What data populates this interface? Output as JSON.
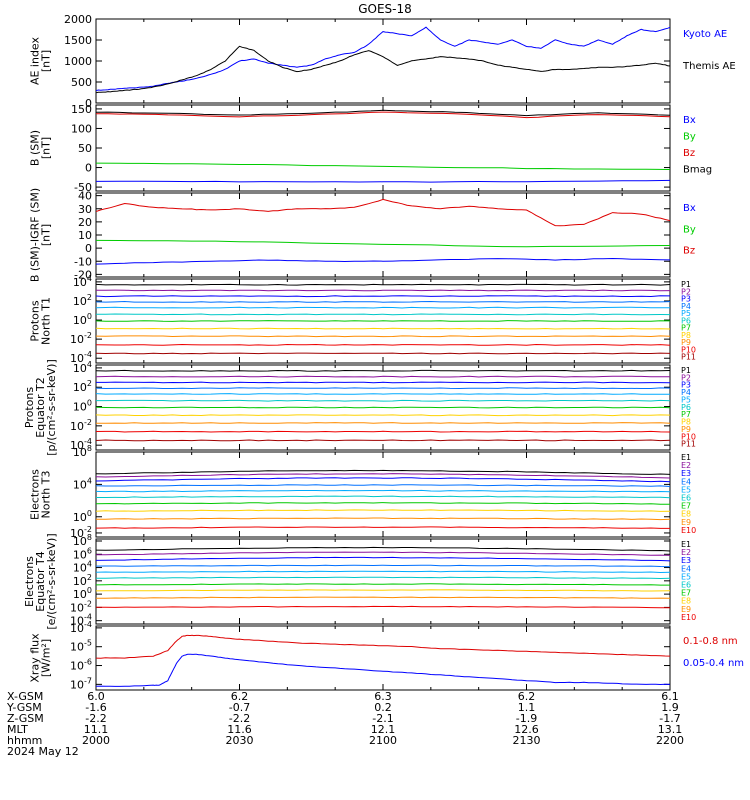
{
  "title": "GOES-18",
  "chart_data": {
    "type": "line",
    "title": "GOES-18",
    "x_range": [
      "2000",
      "2200"
    ],
    "panels": [
      {
        "id": "ae",
        "ylabel_lines": [
          "AE index",
          "[nT]"
        ],
        "ylim": [
          0,
          2000
        ],
        "scale": "linear",
        "ticks": [
          0,
          500,
          1000,
          1500,
          2000
        ],
        "tick_labels": [
          "0",
          "500",
          "1000",
          "1500",
          "2000"
        ],
        "series": [
          {
            "name": "Kyoto AE",
            "color": "#0000ff",
            "x": [
              0,
              5,
              10,
              15,
              20,
              25,
              30,
              35,
              40,
              45,
              50,
              55,
              60,
              65,
              70,
              75,
              80,
              85,
              90,
              95,
              100,
              105,
              110,
              115,
              120,
              125,
              130,
              135,
              140,
              145,
              150,
              155,
              160,
              165,
              170,
              175,
              180,
              185,
              190,
              195,
              200
            ],
            "values": [
              300,
              320,
              350,
              370,
              400,
              470,
              520,
              590,
              680,
              800,
              1000,
              1050,
              950,
              900,
              850,
              900,
              1050,
              1150,
              1200,
              1400,
              1700,
              1650,
              1600,
              1800,
              1500,
              1350,
              1500,
              1450,
              1400,
              1500,
              1350,
              1300,
              1500,
              1400,
              1350,
              1500,
              1400,
              1600,
              1750,
              1700,
              1800
            ]
          },
          {
            "name": "Themis AE",
            "color": "#000000",
            "x": [
              0,
              5,
              10,
              15,
              20,
              25,
              30,
              35,
              40,
              45,
              50,
              55,
              60,
              65,
              70,
              75,
              80,
              85,
              90,
              95,
              100,
              105,
              110,
              115,
              120,
              125,
              130,
              135,
              140,
              145,
              150,
              155,
              160,
              165,
              170,
              175,
              180,
              185,
              190,
              195,
              200
            ],
            "values": [
              250,
              270,
              300,
              330,
              380,
              450,
              550,
              650,
              800,
              1000,
              1350,
              1250,
              1000,
              850,
              750,
              800,
              900,
              1000,
              1150,
              1250,
              1100,
              900,
              1000,
              1050,
              1100,
              1080,
              1050,
              1000,
              900,
              850,
              800,
              750,
              800,
              800,
              820,
              850,
              850,
              870,
              900,
              950,
              880
            ]
          }
        ]
      },
      {
        "id": "bsm",
        "ylabel_lines": [
          "B (SM)",
          "[nT]"
        ],
        "ylim": [
          -60,
          160
        ],
        "scale": "linear",
        "ticks": [
          -50,
          0,
          50,
          100,
          150
        ],
        "tick_labels": [
          "-50",
          "0",
          "50",
          "100",
          "150"
        ],
        "series": [
          {
            "name": "Bx",
            "color": "#0000ff",
            "x": [
              0,
              50,
              100,
              150,
              200
            ],
            "values": [
              -35,
              -36,
              -37,
              -36,
              -33
            ]
          },
          {
            "name": "By",
            "color": "#00cc00",
            "x": [
              0,
              50,
              100,
              150,
              200
            ],
            "values": [
              12,
              8,
              3,
              -2,
              -5
            ]
          },
          {
            "name": "Bz",
            "color": "#dd0000",
            "x": [
              0,
              25,
              50,
              75,
              100,
              125,
              150,
              175,
              200
            ],
            "values": [
              138,
              135,
              130,
              135,
              142,
              138,
              128,
              136,
              130
            ]
          },
          {
            "name": "Bmag",
            "color": "#000000",
            "x": [
              0,
              25,
              50,
              75,
              100,
              125,
              150,
              175,
              200
            ],
            "values": [
              142,
              139,
              134,
              139,
              146,
              142,
              133,
              140,
              134
            ]
          }
        ]
      },
      {
        "id": "bigrf",
        "ylabel_lines": [
          "B (SM)-IGRF (SM)",
          "[nT]"
        ],
        "ylim": [
          -22,
          42
        ],
        "scale": "linear",
        "ticks": [
          -20,
          -10,
          0,
          10,
          20,
          30,
          40
        ],
        "tick_labels": [
          "-20",
          "-10",
          "0",
          "10",
          "20",
          "30",
          "40"
        ],
        "series": [
          {
            "name": "Bx",
            "color": "#0000ff",
            "x": [
              0,
              20,
              40,
              60,
              80,
              100,
              120,
              140,
              160,
              180,
              200
            ],
            "values": [
              -12,
              -11,
              -10,
              -9,
              -10,
              -10,
              -9,
              -8,
              -9,
              -8,
              -9
            ]
          },
          {
            "name": "By",
            "color": "#00cc00",
            "x": [
              0,
              50,
              100,
              150,
              200
            ],
            "values": [
              6,
              5,
              3,
              1,
              2
            ]
          },
          {
            "name": "Bz",
            "color": "#dd0000",
            "x": [
              0,
              10,
              20,
              30,
              40,
              50,
              60,
              70,
              80,
              90,
              100,
              110,
              120,
              130,
              140,
              150,
              160,
              170,
              180,
              190,
              200
            ],
            "values": [
              28,
              34,
              31,
              30,
              29,
              30,
              28,
              30,
              30,
              31,
              37,
              32,
              30,
              32,
              30,
              29,
              17,
              18,
              27,
              26,
              21
            ]
          }
        ]
      },
      {
        "id": "pnorth",
        "ylabel_lines": [
          "Protons",
          "North T1"
        ],
        "ylim": [
          -4.5,
          4.3
        ],
        "scale": "log",
        "ticks": [
          -4,
          -2,
          0,
          2,
          4
        ],
        "tick_labels": [
          "10^-4",
          "10^-2",
          "10^0",
          "10^2",
          "10^4"
        ],
        "legend": [
          "P1",
          "P2",
          "P3",
          "P4",
          "P5",
          "P6",
          "P7",
          "P8",
          "P9",
          "P10",
          "P11"
        ],
        "log_levels": [
          3.7,
          3.1,
          2.5,
          1.9,
          1.3,
          0.6,
          -0.1,
          -0.9,
          -1.7,
          -2.6,
          -3.5
        ]
      },
      {
        "id": "pequator",
        "ylabel_lines": [
          "Protons",
          "Equator T2",
          "[p/(cm²-s-sr-keV)]"
        ],
        "ylim": [
          -4.5,
          4.3
        ],
        "scale": "log",
        "ticks": [
          -4,
          -2,
          0,
          2,
          4
        ],
        "tick_labels": [
          "10^-4",
          "10^-2",
          "10^0",
          "10^2",
          "10^4"
        ],
        "legend": [
          "P1",
          "P2",
          "P3",
          "P4",
          "P5",
          "P6",
          "P7",
          "P8",
          "P9",
          "P10",
          "P11"
        ],
        "log_levels": [
          3.7,
          3.1,
          2.5,
          1.9,
          1.3,
          0.6,
          -0.1,
          -0.9,
          -1.7,
          -2.6,
          -3.5
        ]
      },
      {
        "id": "enorth",
        "ylabel_lines": [
          "Electrons",
          "North T3"
        ],
        "ylim": [
          -2.5,
          8
        ],
        "scale": "log",
        "ticks": [
          -2,
          0,
          4,
          8
        ],
        "tick_labels": [
          "10^-2",
          "10^0",
          "10^4",
          "10^8"
        ],
        "legend": [
          "E1",
          "E2",
          "E3",
          "E4",
          "E5",
          "E6",
          "E7",
          "E8",
          "E9",
          "E10"
        ],
        "log_levels": [
          5.3,
          4.9,
          4.4,
          3.8,
          3.1,
          2.4,
          1.6,
          0.7,
          -0.3,
          -1.4
        ]
      },
      {
        "id": "eequator",
        "ylabel_lines": [
          "Electrons",
          "Equator T4",
          "[e/(cm²-s-sr-keV)]"
        ],
        "ylim": [
          -4.5,
          8.3
        ],
        "scale": "log",
        "ticks": [
          -4,
          -2,
          0,
          2,
          4,
          6,
          8
        ],
        "tick_labels": [
          "10^-4",
          "10^-2",
          "10^0",
          "10^2",
          "10^4",
          "10^6",
          "10^8"
        ],
        "legend": [
          "E1",
          "E2",
          "E3",
          "E4",
          "E5",
          "E6",
          "E7",
          "E8",
          "E9",
          "E10"
        ],
        "log_levels": [
          6.6,
          5.9,
          5.1,
          4.2,
          3.3,
          2.4,
          1.4,
          0.5,
          -0.6,
          -2.0
        ]
      },
      {
        "id": "xray",
        "ylabel_lines": [
          "Xray flux",
          "[W/m²]"
        ],
        "ylim": [
          -7.3,
          -3.9
        ],
        "scale": "log",
        "ticks": [
          -7,
          -6,
          -5,
          -4
        ],
        "tick_labels": [
          "10^-7",
          "10^-6",
          "10^-5",
          "10^-4"
        ],
        "series": [
          {
            "name": "0.1-0.8 nm",
            "color": "#dd0000",
            "x": [
              0,
              10,
              20,
              25,
              28,
              30,
              32,
              35,
              40,
              45,
              50,
              60,
              70,
              80,
              90,
              100,
              110,
              120,
              130,
              140,
              150,
              160,
              170,
              180,
              190,
              200
            ],
            "values": [
              -5.6,
              -5.6,
              -5.5,
              -5.2,
              -4.7,
              -4.45,
              -4.4,
              -4.4,
              -4.45,
              -4.55,
              -4.6,
              -4.7,
              -4.8,
              -4.85,
              -4.9,
              -4.95,
              -5.0,
              -5.1,
              -5.15,
              -5.2,
              -5.25,
              -5.3,
              -5.35,
              -5.4,
              -5.45,
              -5.5
            ]
          },
          {
            "name": "0.05-0.4 nm",
            "color": "#0000ff",
            "x": [
              0,
              10,
              20,
              22,
              25,
              28,
              30,
              32,
              35,
              40,
              45,
              50,
              60,
              70,
              80,
              90,
              100,
              110,
              120,
              130,
              140,
              150,
              160,
              170,
              180,
              190,
              200
            ],
            "values": [
              -7.1,
              -7.1,
              -7.05,
              -7.05,
              -6.8,
              -5.9,
              -5.5,
              -5.4,
              -5.4,
              -5.5,
              -5.6,
              -5.7,
              -5.85,
              -6.0,
              -6.1,
              -6.2,
              -6.3,
              -6.4,
              -6.5,
              -6.6,
              -6.7,
              -6.8,
              -6.9,
              -6.9,
              -6.95,
              -7.0,
              -7.0
            ]
          }
        ]
      }
    ],
    "log_series_colors": [
      "#000000",
      "#8b0f9b",
      "#0000ff",
      "#0070ff",
      "#00aaff",
      "#00c8c8",
      "#00c800",
      "#ffd200",
      "#ff8c00",
      "#ee0000",
      "#a00000",
      "#800000"
    ],
    "ephemeris": {
      "row_labels": [
        "X-GSM",
        "Y-GSM",
        "Z-GSM",
        "MLT",
        "hhmm"
      ],
      "columns": [
        [
          "6.0",
          "-1.6",
          "-2.2",
          "11.1",
          "2000"
        ],
        [
          "6.2",
          "-0.7",
          "-2.2",
          "11.6",
          "2030"
        ],
        [
          "6.3",
          "0.2",
          "-2.1",
          "12.1",
          "2100"
        ],
        [
          "6.2",
          "1.1",
          "-1.9",
          "12.6",
          "2130"
        ],
        [
          "6.1",
          "1.9",
          "-1.7",
          "13.1",
          "2200"
        ]
      ],
      "date": "2024 May 12"
    }
  }
}
